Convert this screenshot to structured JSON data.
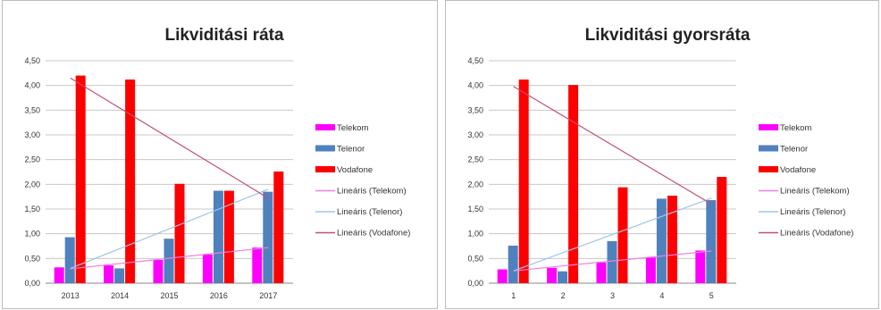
{
  "chart_data": [
    {
      "type": "bar",
      "title": "Likviditási ráta",
      "categories": [
        "2013",
        "2014",
        "2015",
        "2016",
        "2017"
      ],
      "yticks": [
        "0,00",
        "0,50",
        "1,00",
        "1,50",
        "2,00",
        "2,50",
        "3,00",
        "3,50",
        "4,00",
        "4,50"
      ],
      "ylim": [
        0,
        4.5
      ],
      "grid": true,
      "legend_position": "right",
      "series": [
        {
          "name": "Telekom",
          "color": "#ff00ff",
          "values": [
            0.32,
            0.36,
            0.47,
            0.58,
            0.72
          ]
        },
        {
          "name": "Telenor",
          "color": "#4f81bd",
          "values": [
            0.93,
            0.3,
            0.9,
            1.87,
            1.85
          ]
        },
        {
          "name": "Vodafone",
          "color": "#ff0000",
          "values": [
            4.2,
            4.12,
            2.01,
            1.87,
            2.26
          ]
        }
      ],
      "trendlines": [
        {
          "name": "Lineáris (Telekom)",
          "color": "#f080e0",
          "start": 0.29,
          "end": 0.72
        },
        {
          "name": "Lineáris (Telenor)",
          "color": "#9fc5e8",
          "start": 0.3,
          "end": 1.9
        },
        {
          "name": "Lineáris (Vodafone)",
          "color": "#c0506e",
          "start": 4.15,
          "end": 1.72
        }
      ]
    },
    {
      "type": "bar",
      "title": "Likviditási gyorsráta",
      "categories": [
        "1",
        "2",
        "3",
        "4",
        "5"
      ],
      "yticks": [
        "0,00",
        "0,50",
        "1,00",
        "1,50",
        "2,00",
        "2,50",
        "3,00",
        "3,50",
        "4,00",
        "4,50"
      ],
      "ylim": [
        0,
        4.5
      ],
      "grid": true,
      "legend_position": "right",
      "series": [
        {
          "name": "Telekom",
          "color": "#ff00ff",
          "values": [
            0.28,
            0.31,
            0.42,
            0.52,
            0.66
          ]
        },
        {
          "name": "Telenor",
          "color": "#4f81bd",
          "values": [
            0.76,
            0.24,
            0.85,
            1.71,
            1.68
          ]
        },
        {
          "name": "Vodafone",
          "color": "#ff0000",
          "values": [
            4.12,
            4.01,
            1.94,
            1.77,
            2.15
          ]
        }
      ],
      "trendlines": [
        {
          "name": "Lineáris (Telekom)",
          "color": "#f080e0",
          "start": 0.25,
          "end": 0.65
        },
        {
          "name": "Lineáris (Telenor)",
          "color": "#9fc5e8",
          "start": 0.25,
          "end": 1.72
        },
        {
          "name": "Lineáris (Vodafone)",
          "color": "#c0506e",
          "start": 3.98,
          "end": 1.6
        }
      ]
    }
  ]
}
